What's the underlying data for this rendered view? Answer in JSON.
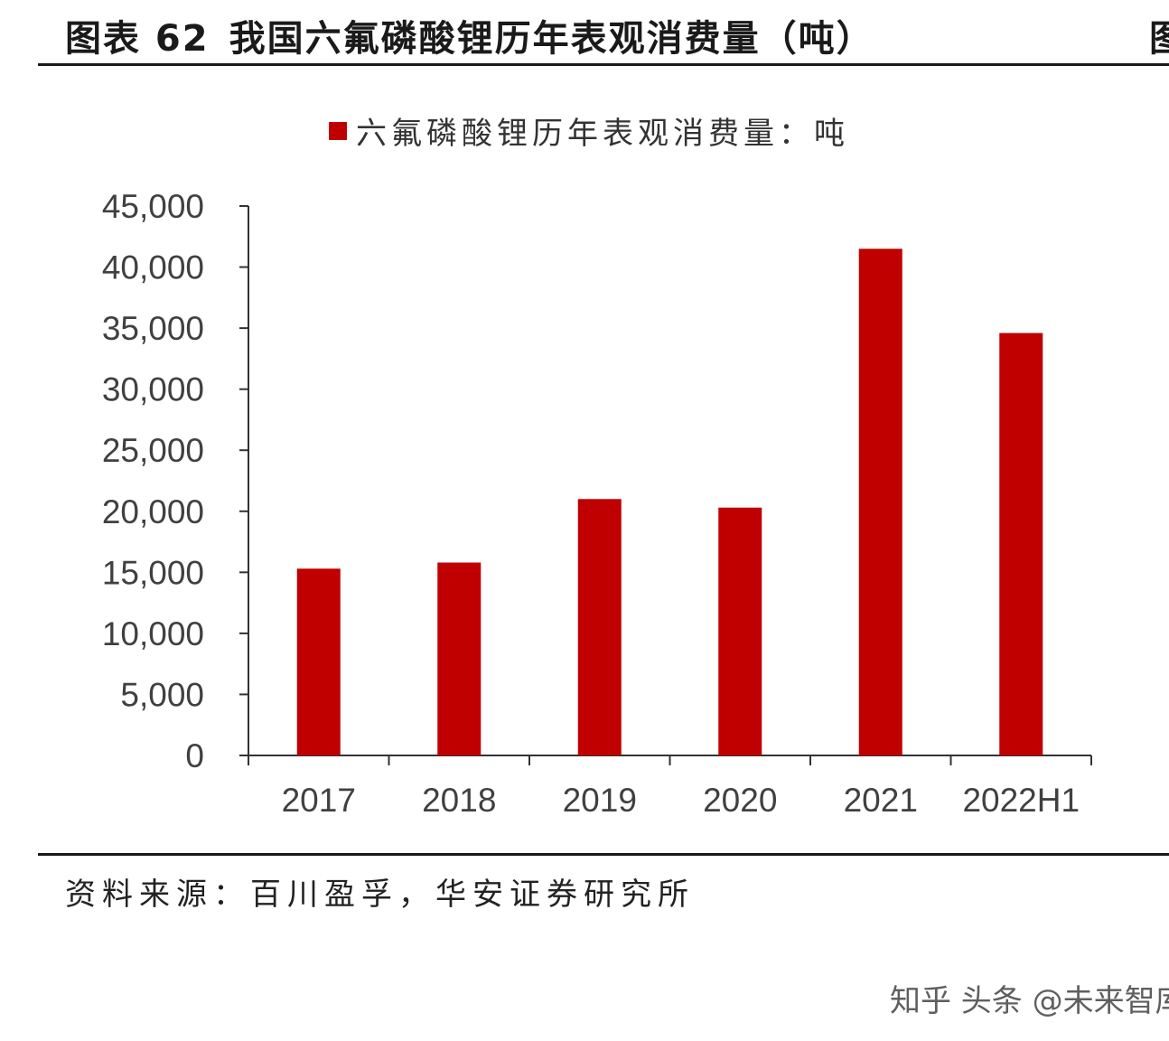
{
  "header": {
    "figure_number": "图表 62",
    "title": "我国六氟磷酸锂历年表观消费量（吨）",
    "cut_off_text": "图"
  },
  "footer": {
    "source": "资料来源：百川盈孚，华安证券研究所",
    "watermark": "知乎 头条 @未来智库"
  },
  "colors": {
    "bar": "#c00000",
    "axis": "#333333",
    "text": "#404040"
  },
  "chart_data": {
    "type": "bar",
    "legend_label": "六氟磷酸锂历年表观消费量：吨",
    "legend_position": "top",
    "grid": false,
    "categories": [
      "2017",
      "2018",
      "2019",
      "2020",
      "2021",
      "2022H1"
    ],
    "series": [
      {
        "name": "六氟磷酸锂历年表观消费量：吨",
        "values": [
          15300,
          15800,
          21000,
          20300,
          41500,
          34600
        ]
      }
    ],
    "ylim": [
      0,
      45000
    ],
    "yticks": [
      0,
      5000,
      10000,
      15000,
      20000,
      25000,
      30000,
      35000,
      40000,
      45000
    ],
    "ytick_labels": [
      "0",
      "5,000",
      "10,000",
      "15,000",
      "20,000",
      "25,000",
      "30,000",
      "35,000",
      "40,000",
      "45,000"
    ]
  }
}
